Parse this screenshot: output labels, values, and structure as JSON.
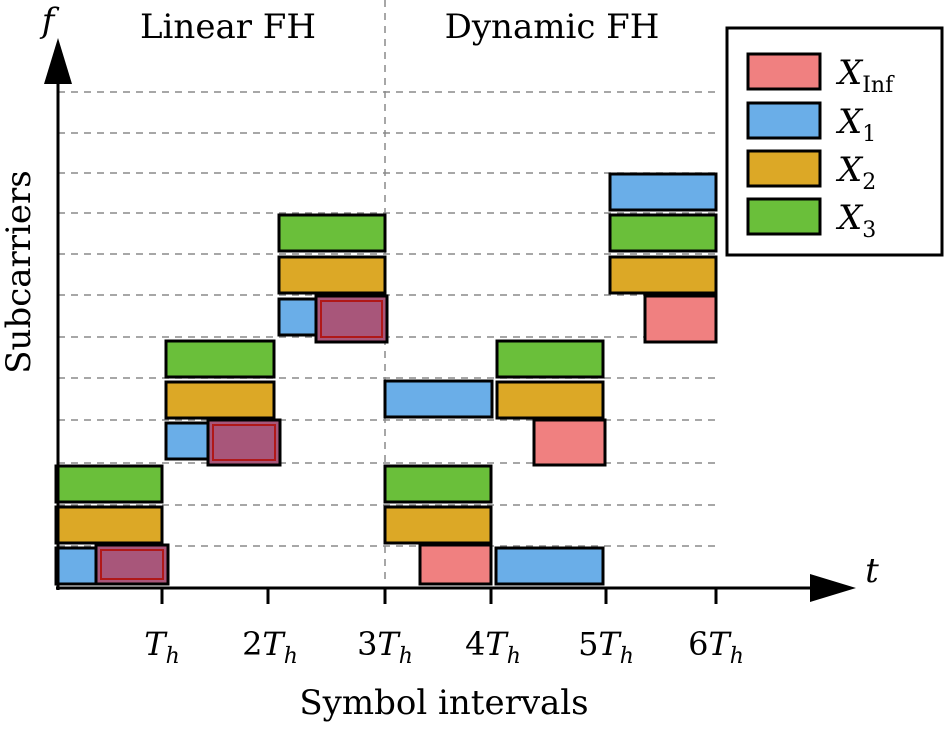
{
  "axis": {
    "y_symbol": "f",
    "x_symbol": "t",
    "y_label": "Subcarriers",
    "x_label": "Symbol intervals",
    "x_ticks": [
      {
        "coef": "",
        "sub": "h"
      },
      {
        "coef": "2",
        "sub": "h"
      },
      {
        "coef": "3",
        "sub": "h"
      },
      {
        "coef": "4",
        "sub": "h"
      },
      {
        "coef": "5",
        "sub": "h"
      },
      {
        "coef": "6",
        "sub": "h"
      }
    ]
  },
  "sections": {
    "left": "Linear FH",
    "right": "Dynamic FH"
  },
  "legend": [
    {
      "key": "inf",
      "base": "X",
      "sub": "Inf",
      "color": "#f08080"
    },
    {
      "key": "x1",
      "base": "X",
      "sub": "1",
      "color": "#6aaee8"
    },
    {
      "key": "x2",
      "base": "X",
      "sub": "2",
      "color": "#dca826"
    },
    {
      "key": "x3",
      "base": "X",
      "sub": "3",
      "color": "#6abf3a"
    }
  ],
  "colors": {
    "inf": "#f08080",
    "x1": "#6aaee8",
    "x2": "#dca826",
    "x3": "#6abf3a",
    "overlap": "#a8567a",
    "overlap_border": "#b01818"
  }
}
